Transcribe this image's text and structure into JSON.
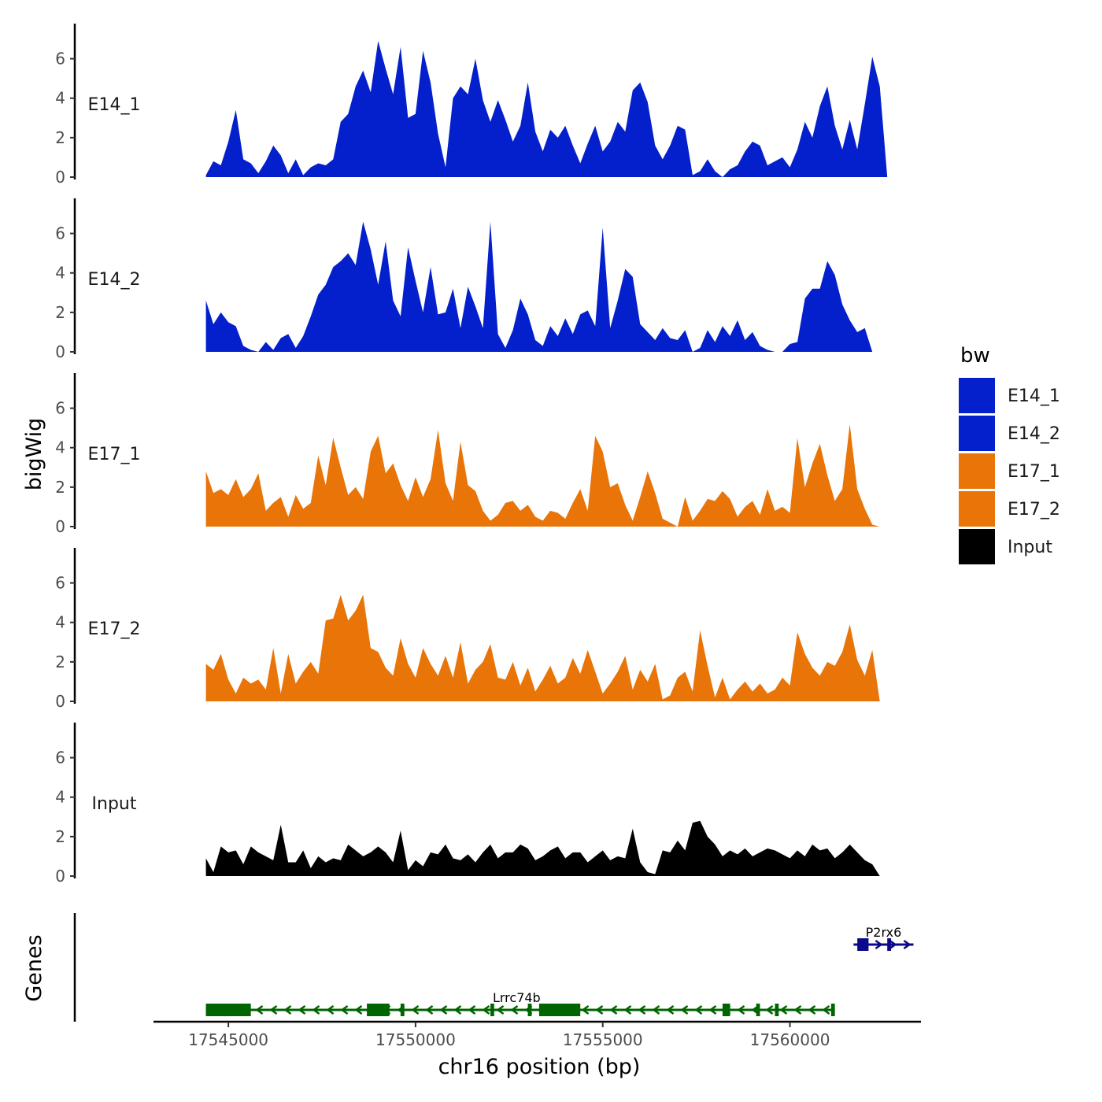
{
  "chart_data": {
    "type": "area",
    "xlabel": "chr16 position (bp)",
    "ylabel": "bigWig",
    "genes_axis_label": "Genes",
    "xlim": [
      17543000,
      17563500
    ],
    "x_ticks": [
      17545000,
      17550000,
      17555000,
      17560000
    ],
    "x_tick_labels": [
      "17545000",
      "17550000",
      "17555000",
      "17560000"
    ],
    "ylim": [
      0,
      7.5
    ],
    "y_ticks": [
      0,
      2,
      4,
      6
    ],
    "y_tick_labels": [
      "0",
      "2",
      "4",
      "6"
    ],
    "legend": {
      "title": "bw",
      "position": "right",
      "entries": [
        {
          "label": "E14_1",
          "color": "#0320cc"
        },
        {
          "label": "E14_2",
          "color": "#0320cc"
        },
        {
          "label": "E17_1",
          "color": "#e97408"
        },
        {
          "label": "E17_2",
          "color": "#e97408"
        },
        {
          "label": "Input",
          "color": "#000000"
        }
      ]
    },
    "series": [
      {
        "name": "E14_1",
        "color": "#0320cc",
        "x": [
          17544400,
          17544600,
          17544800,
          17545000,
          17545200,
          17545400,
          17545600,
          17545800,
          17546000,
          17546200,
          17546400,
          17546600,
          17546800,
          17547000,
          17547200,
          17547400,
          17547600,
          17547800,
          17548000,
          17548200,
          17548400,
          17548600,
          17548800,
          17549000,
          17549200,
          17549400,
          17549600,
          17549800,
          17550000,
          17550200,
          17550400,
          17550600,
          17550800,
          17551000,
          17551200,
          17551400,
          17551600,
          17551800,
          17552000,
          17552200,
          17552400,
          17552600,
          17552800,
          17553000,
          17553200,
          17553400,
          17553600,
          17553800,
          17554000,
          17554200,
          17554400,
          17554600,
          17554800,
          17555000,
          17555200,
          17555400,
          17555600,
          17555800,
          17556000,
          17556200,
          17556400,
          17556600,
          17556800,
          17557000,
          17557200,
          17557400,
          17557600,
          17557800,
          17558000,
          17558200,
          17558400,
          17558600,
          17558800,
          17559000,
          17559200,
          17559400,
          17559600,
          17559800,
          17560000,
          17560200,
          17560400,
          17560600,
          17560800,
          17561000,
          17561200,
          17561400,
          17561600,
          17561800,
          17562000,
          17562200,
          17562400,
          17562600,
          17562800,
          17563000,
          17563100
        ],
        "values": [
          0.1,
          0.8,
          0.6,
          1.8,
          3.4,
          0.9,
          0.7,
          0.2,
          0.8,
          1.6,
          1.1,
          0.2,
          0.9,
          0.1,
          0.5,
          0.7,
          0.6,
          0.9,
          2.8,
          3.2,
          4.6,
          5.4,
          4.3,
          6.9,
          5.5,
          4.2,
          6.6,
          3.0,
          3.2,
          6.4,
          4.8,
          2.2,
          0.5,
          4.0,
          4.6,
          4.2,
          6.0,
          3.9,
          2.8,
          3.9,
          2.9,
          1.8,
          2.6,
          4.8,
          2.3,
          1.3,
          2.4,
          2.0,
          2.6,
          1.6,
          0.7,
          1.7,
          2.6,
          1.3,
          1.8,
          2.8,
          2.3,
          4.4,
          4.8,
          3.8,
          1.6,
          0.9,
          1.6,
          2.6,
          2.4,
          0.1,
          0.3,
          0.9,
          0.3,
          0.0,
          0.4,
          0.6,
          1.3,
          1.8,
          1.6,
          0.6,
          0.8,
          1.0,
          0.5,
          1.4,
          2.8,
          2.0,
          3.6,
          4.6,
          2.6,
          1.4,
          2.9,
          1.4,
          3.7,
          6.1,
          4.6,
          0.0,
          0.0,
          0.0,
          0.0
        ]
      },
      {
        "name": "E14_2",
        "color": "#0320cc",
        "x": [
          17544400,
          17544600,
          17544800,
          17545000,
          17545200,
          17545400,
          17545600,
          17545800,
          17546000,
          17546200,
          17546400,
          17546600,
          17546800,
          17547000,
          17547200,
          17547400,
          17547600,
          17547800,
          17548000,
          17548200,
          17548400,
          17548600,
          17548800,
          17549000,
          17549200,
          17549400,
          17549600,
          17549800,
          17550000,
          17550200,
          17550400,
          17550600,
          17550800,
          17551000,
          17551200,
          17551400,
          17551600,
          17551800,
          17552000,
          17552200,
          17552400,
          17552600,
          17552800,
          17553000,
          17553200,
          17553400,
          17553600,
          17553800,
          17554000,
          17554200,
          17554400,
          17554600,
          17554800,
          17555000,
          17555200,
          17555400,
          17555600,
          17555800,
          17556000,
          17556200,
          17556400,
          17556600,
          17556800,
          17557000,
          17557200,
          17557400,
          17557600,
          17557800,
          17558000,
          17558200,
          17558400,
          17558600,
          17558800,
          17559000,
          17559200,
          17559400,
          17559600,
          17559800,
          17560000,
          17560200,
          17560400,
          17560600,
          17560800,
          17561000,
          17561200,
          17561400,
          17561600,
          17561800,
          17562000,
          17562200,
          17562400,
          17562600,
          17562800,
          17563000,
          17563100
        ],
        "values": [
          2.6,
          1.4,
          2.0,
          1.5,
          1.3,
          0.3,
          0.1,
          0.0,
          0.5,
          0.1,
          0.7,
          0.9,
          0.2,
          0.8,
          1.8,
          2.9,
          3.4,
          4.3,
          4.6,
          5.0,
          4.4,
          6.6,
          5.2,
          3.4,
          5.6,
          2.6,
          1.8,
          5.3,
          3.6,
          2.0,
          4.3,
          1.9,
          2.0,
          3.2,
          1.2,
          3.3,
          2.3,
          1.2,
          6.6,
          0.9,
          0.2,
          1.1,
          2.7,
          1.9,
          0.6,
          0.3,
          1.3,
          0.8,
          1.7,
          0.9,
          1.9,
          2.1,
          1.3,
          6.3,
          1.2,
          2.6,
          4.2,
          3.8,
          1.4,
          1.0,
          0.6,
          1.2,
          0.7,
          0.6,
          1.1,
          0.0,
          0.2,
          1.1,
          0.5,
          1.3,
          0.8,
          1.6,
          0.6,
          1.0,
          0.3,
          0.1,
          0.0,
          0.0,
          0.4,
          0.5,
          2.7,
          3.2,
          3.2,
          4.6,
          3.9,
          2.4,
          1.6,
          1.0,
          1.2,
          0.0,
          0.0,
          0.0,
          0.0,
          0.0,
          0.0
        ]
      },
      {
        "name": "E17_1",
        "color": "#e97408",
        "x": [
          17544400,
          17544600,
          17544800,
          17545000,
          17545200,
          17545400,
          17545600,
          17545800,
          17546000,
          17546200,
          17546400,
          17546600,
          17546800,
          17547000,
          17547200,
          17547400,
          17547600,
          17547800,
          17548000,
          17548200,
          17548400,
          17548600,
          17548800,
          17549000,
          17549200,
          17549400,
          17549600,
          17549800,
          17550000,
          17550200,
          17550400,
          17550600,
          17550800,
          17551000,
          17551200,
          17551400,
          17551600,
          17551800,
          17552000,
          17552200,
          17552400,
          17552600,
          17552800,
          17553000,
          17553200,
          17553400,
          17553600,
          17553800,
          17554000,
          17554200,
          17554400,
          17554600,
          17554800,
          17555000,
          17555200,
          17555400,
          17555600,
          17555800,
          17556000,
          17556200,
          17556400,
          17556600,
          17556800,
          17557000,
          17557200,
          17557400,
          17557600,
          17557800,
          17558000,
          17558200,
          17558400,
          17558600,
          17558800,
          17559000,
          17559200,
          17559400,
          17559600,
          17559800,
          17560000,
          17560200,
          17560400,
          17560600,
          17560800,
          17561000,
          17561200,
          17561400,
          17561600,
          17561800,
          17562000,
          17562200,
          17562400,
          17562600,
          17562800,
          17563000,
          17563100
        ],
        "values": [
          2.8,
          1.7,
          1.9,
          1.6,
          2.4,
          1.5,
          1.9,
          2.7,
          0.8,
          1.2,
          1.5,
          0.5,
          1.6,
          0.9,
          1.2,
          3.6,
          2.1,
          4.5,
          3.0,
          1.6,
          2.0,
          1.4,
          3.8,
          4.6,
          2.7,
          3.2,
          2.1,
          1.3,
          2.5,
          1.5,
          2.4,
          4.9,
          2.2,
          1.3,
          4.3,
          2.1,
          1.8,
          0.8,
          0.3,
          0.6,
          1.2,
          1.3,
          0.8,
          1.1,
          0.5,
          0.3,
          0.8,
          0.7,
          0.4,
          1.2,
          1.9,
          0.8,
          4.6,
          3.8,
          2.0,
          2.2,
          1.1,
          0.3,
          1.5,
          2.8,
          1.7,
          0.4,
          0.2,
          0.0,
          1.5,
          0.3,
          0.8,
          1.4,
          1.3,
          1.8,
          1.4,
          0.5,
          1.0,
          1.3,
          0.6,
          1.9,
          0.8,
          1.0,
          0.7,
          4.5,
          2.0,
          3.2,
          4.2,
          2.6,
          1.3,
          1.9,
          5.2,
          1.9,
          0.9,
          0.1,
          0.0,
          0.0,
          0.0,
          0.0,
          0.0
        ]
      },
      {
        "name": "E17_2",
        "color": "#e97408",
        "x": [
          17544400,
          17544600,
          17544800,
          17545000,
          17545200,
          17545400,
          17545600,
          17545800,
          17546000,
          17546200,
          17546400,
          17546600,
          17546800,
          17547000,
          17547200,
          17547400,
          17547600,
          17547800,
          17548000,
          17548200,
          17548400,
          17548600,
          17548800,
          17549000,
          17549200,
          17549400,
          17549600,
          17549800,
          17550000,
          17550200,
          17550400,
          17550600,
          17550800,
          17551000,
          17551200,
          17551400,
          17551600,
          17551800,
          17552000,
          17552200,
          17552400,
          17552600,
          17552800,
          17553000,
          17553200,
          17553400,
          17553600,
          17553800,
          17554000,
          17554200,
          17554400,
          17554600,
          17554800,
          17555000,
          17555200,
          17555400,
          17555600,
          17555800,
          17556000,
          17556200,
          17556400,
          17556600,
          17556800,
          17557000,
          17557200,
          17557400,
          17557600,
          17557800,
          17558000,
          17558200,
          17558400,
          17558600,
          17558800,
          17559000,
          17559200,
          17559400,
          17559600,
          17559800,
          17560000,
          17560200,
          17560400,
          17560600,
          17560800,
          17561000,
          17561200,
          17561400,
          17561600,
          17561800,
          17562000,
          17562200,
          17562400,
          17562600,
          17562800,
          17563000,
          17563100
        ],
        "values": [
          1.9,
          1.6,
          2.4,
          1.1,
          0.4,
          1.2,
          0.9,
          1.1,
          0.6,
          2.7,
          0.4,
          2.4,
          0.9,
          1.5,
          2.0,
          1.4,
          4.1,
          4.2,
          5.4,
          4.1,
          4.6,
          5.4,
          2.7,
          2.5,
          1.7,
          1.3,
          3.2,
          1.9,
          1.2,
          2.7,
          1.9,
          1.3,
          2.3,
          1.2,
          3.0,
          0.9,
          1.6,
          2.0,
          2.9,
          1.2,
          1.1,
          2.0,
          0.8,
          1.7,
          0.5,
          1.1,
          1.8,
          0.9,
          1.2,
          2.2,
          1.4,
          2.6,
          1.5,
          0.4,
          0.9,
          1.5,
          2.3,
          0.6,
          1.6,
          1.0,
          1.9,
          0.1,
          0.3,
          1.2,
          1.5,
          0.5,
          3.6,
          1.8,
          0.2,
          1.2,
          0.1,
          0.6,
          1.0,
          0.5,
          0.9,
          0.4,
          0.6,
          1.2,
          0.8,
          3.5,
          2.4,
          1.7,
          1.3,
          2.0,
          1.8,
          2.5,
          3.9,
          2.1,
          1.3,
          2.6,
          0.0,
          0.0,
          0.0,
          0.0,
          0.0
        ]
      },
      {
        "name": "Input",
        "color": "#000000",
        "x": [
          17544400,
          17544600,
          17544800,
          17545000,
          17545200,
          17545400,
          17545600,
          17545800,
          17546000,
          17546200,
          17546400,
          17546600,
          17546800,
          17547000,
          17547200,
          17547400,
          17547600,
          17547800,
          17548000,
          17548200,
          17548400,
          17548600,
          17548800,
          17549000,
          17549200,
          17549400,
          17549600,
          17549800,
          17550000,
          17550200,
          17550400,
          17550600,
          17550800,
          17551000,
          17551200,
          17551400,
          17551600,
          17551800,
          17552000,
          17552200,
          17552400,
          17552600,
          17552800,
          17553000,
          17553200,
          17553400,
          17553600,
          17553800,
          17554000,
          17554200,
          17554400,
          17554600,
          17554800,
          17555000,
          17555200,
          17555400,
          17555600,
          17555800,
          17556000,
          17556200,
          17556400,
          17556600,
          17556800,
          17557000,
          17557200,
          17557400,
          17557600,
          17557800,
          17558000,
          17558200,
          17558400,
          17558600,
          17558800,
          17559000,
          17559200,
          17559400,
          17559600,
          17559800,
          17560000,
          17560200,
          17560400,
          17560600,
          17560800,
          17561000,
          17561200,
          17561400,
          17561600,
          17561800,
          17562000,
          17562200,
          17562400,
          17562600,
          17562800,
          17563000,
          17563100
        ],
        "values": [
          0.9,
          0.2,
          1.5,
          1.2,
          1.3,
          0.6,
          1.5,
          1.2,
          1.0,
          0.8,
          2.6,
          0.7,
          0.7,
          1.3,
          0.4,
          1.0,
          0.7,
          0.9,
          0.8,
          1.6,
          1.3,
          1.0,
          1.2,
          1.5,
          1.2,
          0.7,
          2.3,
          0.3,
          0.8,
          0.5,
          1.2,
          1.1,
          1.6,
          0.9,
          0.8,
          1.1,
          0.7,
          1.2,
          1.6,
          0.9,
          1.2,
          1.2,
          1.6,
          1.4,
          0.8,
          1.0,
          1.3,
          1.5,
          0.9,
          1.2,
          1.2,
          0.7,
          1.0,
          1.3,
          0.8,
          1.0,
          0.9,
          2.4,
          0.7,
          0.2,
          0.1,
          1.3,
          1.2,
          1.8,
          1.3,
          2.7,
          2.8,
          2.0,
          1.6,
          1.0,
          1.3,
          1.1,
          1.4,
          1.0,
          1.2,
          1.4,
          1.3,
          1.1,
          0.9,
          1.3,
          1.0,
          1.6,
          1.3,
          1.4,
          0.9,
          1.2,
          1.6,
          1.2,
          0.8,
          0.6,
          0.0,
          0.0,
          0.0,
          0.0,
          0.0
        ]
      }
    ],
    "genes": [
      {
        "name": "Lrrc74b",
        "color": "#006400",
        "strand": "-",
        "start": 17544400,
        "end": 17561200,
        "exons": [
          [
            17544400,
            17545600
          ],
          [
            17548700,
            17549300
          ],
          [
            17549600,
            17549700
          ],
          [
            17552000,
            17552100
          ],
          [
            17553000,
            17553100
          ],
          [
            17553300,
            17554400
          ],
          [
            17558200,
            17558400
          ],
          [
            17559100,
            17559200
          ],
          [
            17559600,
            17559700
          ],
          [
            17561100,
            17561200
          ]
        ]
      },
      {
        "name": "P2rx6",
        "color": "#0a0a8a",
        "strand": "+",
        "start": 17561700,
        "end": 17563300,
        "exons": [
          [
            17561800,
            17562100
          ],
          [
            17562600,
            17562700
          ]
        ]
      }
    ]
  }
}
